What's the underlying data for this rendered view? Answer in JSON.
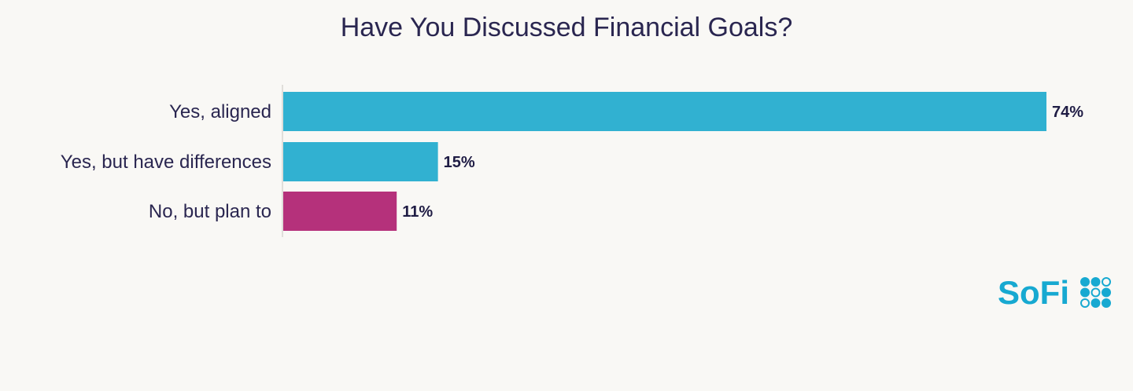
{
  "chart_data": {
    "type": "bar",
    "orientation": "horizontal",
    "title": "Have You Discussed Financial Goals?",
    "categories": [
      "Yes, aligned",
      "Yes, but have differences",
      "No, but plan to"
    ],
    "values": [
      74,
      15,
      11
    ],
    "value_labels": [
      "74%",
      "15%",
      "11%"
    ],
    "colors": [
      "#31b1d1",
      "#31b1d1",
      "#b5317b"
    ],
    "xlabel": "",
    "ylabel": "",
    "xlim": [
      0,
      100
    ],
    "grid": false
  },
  "brand": {
    "name": "SoFi",
    "color": "#17a9d1"
  }
}
